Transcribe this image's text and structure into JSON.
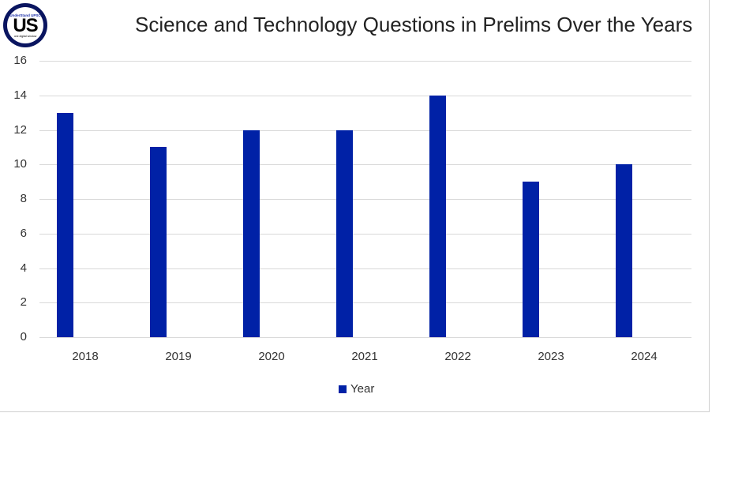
{
  "logo": {
    "top_text": "UnderStand UPSC",
    "main_text": "US",
    "bottom_text": "one digital window"
  },
  "chart_data": {
    "type": "bar",
    "title": "Science and Technology Questions in Prelims Over the Years",
    "xlabel": "",
    "ylabel": "",
    "categories": [
      "2018",
      "2019",
      "2020",
      "2021",
      "2022",
      "2023",
      "2024"
    ],
    "series": [
      {
        "name": "Year",
        "color": "#0021a6",
        "values": [
          13,
          11,
          12,
          12,
          14,
          9,
          10
        ]
      }
    ],
    "ylim": [
      0,
      16
    ],
    "yticks": [
      "0",
      "2",
      "4",
      "6",
      "8",
      "10",
      "12",
      "14",
      "16"
    ],
    "grid": true,
    "legend_position": "bottom"
  }
}
